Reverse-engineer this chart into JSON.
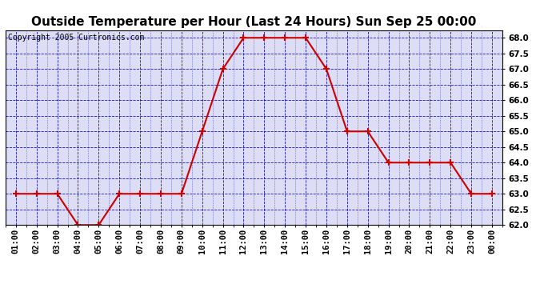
{
  "title": "Outside Temperature per Hour (Last 24 Hours) Sun Sep 25 00:00",
  "copyright": "Copyright 2005 Curtronics.com",
  "x_labels": [
    "01:00",
    "02:00",
    "03:00",
    "04:00",
    "05:00",
    "06:00",
    "07:00",
    "08:00",
    "09:00",
    "10:00",
    "11:00",
    "12:00",
    "13:00",
    "14:00",
    "15:00",
    "16:00",
    "17:00",
    "18:00",
    "19:00",
    "20:00",
    "21:00",
    "22:00",
    "23:00",
    "00:00"
  ],
  "y_values": [
    63.0,
    63.0,
    63.0,
    62.0,
    62.0,
    63.0,
    63.0,
    63.0,
    63.0,
    65.0,
    67.0,
    68.0,
    68.0,
    68.0,
    68.0,
    67.0,
    65.0,
    65.0,
    64.0,
    64.0,
    64.0,
    64.0,
    63.0,
    63.0
  ],
  "line_color": "#cc0000",
  "marker": "+",
  "marker_color": "#cc0000",
  "marker_size": 6,
  "marker_linewidth": 1.5,
  "plot_bg_color": "#ddddf5",
  "outer_bg_color": "#ffffff",
  "grid_color": "#0000bb",
  "ylim": [
    62.0,
    68.25
  ],
  "ytick_min": 62.0,
  "ytick_max": 68.0,
  "ytick_step": 0.5,
  "title_fontsize": 11,
  "tick_fontsize": 7.5,
  "copyright_fontsize": 7
}
